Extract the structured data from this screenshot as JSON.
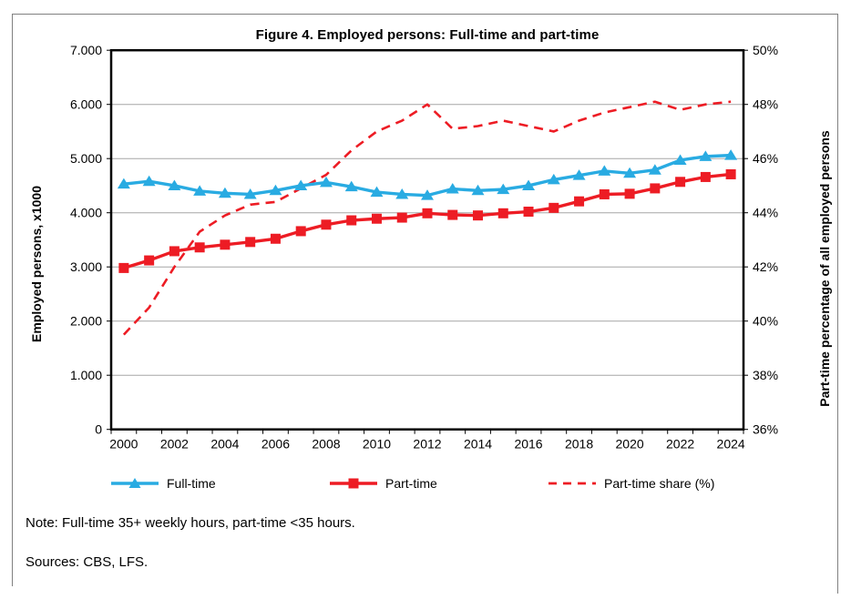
{
  "figure": {
    "title": "Figure 4. Employed persons: Full-time and part-time",
    "note": "Note: Full-time 35+ weekly hours, part-time <35 hours.",
    "sources": "Sources: CBS, LFS."
  },
  "chart_data": {
    "type": "line",
    "title": "Figure 4. Employed persons: Full-time and part-time",
    "x": [
      2000,
      2001,
      2002,
      2003,
      2004,
      2005,
      2006,
      2007,
      2008,
      2009,
      2010,
      2011,
      2012,
      2013,
      2014,
      2015,
      2016,
      2017,
      2018,
      2019,
      2020,
      2021,
      2022,
      2023,
      2024
    ],
    "x_tick_labels": [
      "2000",
      "2002",
      "2004",
      "2006",
      "2008",
      "2010",
      "2012",
      "2014",
      "2016",
      "2018",
      "2020",
      "2022",
      "2024"
    ],
    "series": [
      {
        "name": "Full-time",
        "axis": "left",
        "color": "#29ABE2",
        "marker": "triangle",
        "style": "solid",
        "values": [
          4530,
          4580,
          4500,
          4400,
          4360,
          4340,
          4410,
          4500,
          4560,
          4480,
          4380,
          4340,
          4320,
          4440,
          4410,
          4430,
          4500,
          4610,
          4690,
          4770,
          4730,
          4790,
          4970,
          5040,
          5060
        ]
      },
      {
        "name": "Part-time",
        "axis": "left",
        "color": "#ED1C24",
        "marker": "square",
        "style": "solid",
        "values": [
          2980,
          3120,
          3290,
          3360,
          3410,
          3460,
          3520,
          3660,
          3780,
          3860,
          3890,
          3910,
          3990,
          3960,
          3950,
          3990,
          4020,
          4090,
          4210,
          4340,
          4350,
          4450,
          4570,
          4660,
          4710
        ]
      },
      {
        "name": "Part-time share (%)",
        "axis": "right",
        "color": "#ED1C24",
        "marker": "none",
        "style": "dashed",
        "values": [
          39.5,
          40.5,
          42.0,
          43.3,
          43.9,
          44.3,
          44.4,
          44.9,
          45.4,
          46.3,
          47.0,
          47.4,
          48.0,
          47.1,
          47.2,
          47.4,
          47.2,
          47.0,
          47.4,
          47.7,
          47.9,
          48.1,
          47.8,
          48.0,
          48.1
        ]
      }
    ],
    "left_axis": {
      "title": "Employed persons, x1000",
      "min": 0,
      "max": 7000,
      "tick_step": 1000,
      "tick_labels": [
        "0",
        "1.000",
        "2.000",
        "3.000",
        "4.000",
        "5.000",
        "6.000",
        "7.000"
      ]
    },
    "right_axis": {
      "title": "Part-time percentage of all employed persons",
      "min": 36,
      "max": 50,
      "tick_step": 2,
      "tick_labels": [
        "36%",
        "38%",
        "40%",
        "42%",
        "44%",
        "46%",
        "48%",
        "50%"
      ]
    },
    "legend_position": "bottom",
    "grid": true,
    "gridline_color": "#A6A6A6",
    "plot_border_color": "#000000",
    "outer_border_color": "#808080"
  }
}
